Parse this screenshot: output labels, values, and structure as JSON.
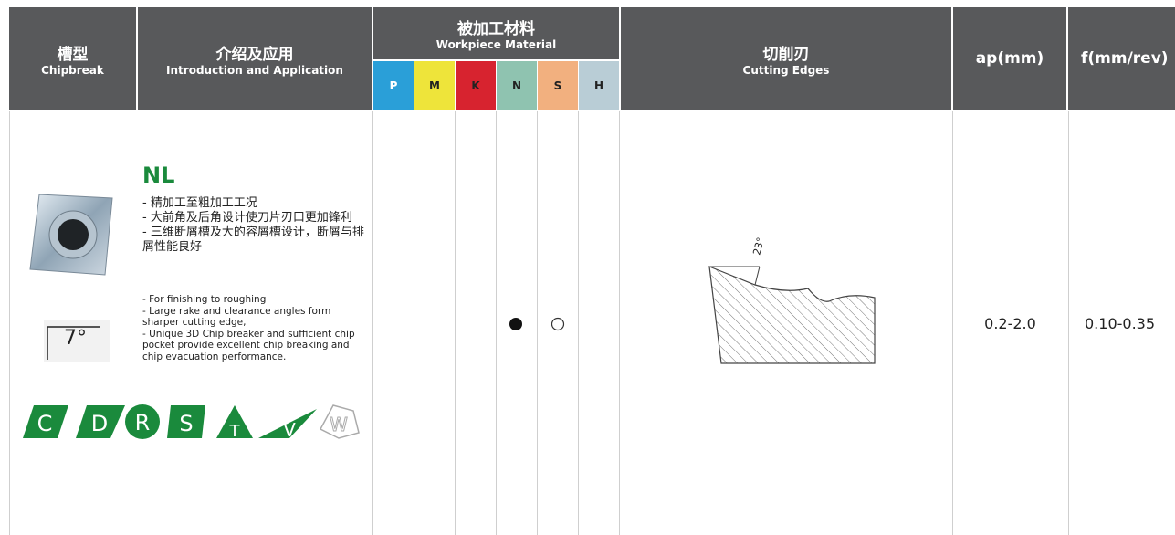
{
  "header": {
    "chipbreak": {
      "zh": "槽型",
      "en": "Chipbreak"
    },
    "intro": {
      "zh": "介绍及应用",
      "en": "Introduction and Application"
    },
    "material": {
      "zh": "被加工材料",
      "en": "Workpiece Material",
      "grades": [
        "P",
        "M",
        "K",
        "N",
        "S",
        "H"
      ]
    },
    "edges": {
      "zh": "切削刃",
      "en": "Cutting Edges"
    },
    "ap": "ap(mm)",
    "f": "f(mm/rev)"
  },
  "row": {
    "name": "NL",
    "clearance": "7°",
    "zh_points": [
      "- 精加工至粗加工工况",
      "- 大前角及后角设计使刀片刃口更加锋利",
      "- 三维断屑槽及大的容屑槽设计，断屑与排屑性能良好"
    ],
    "en_points": [
      "- For finishing to roughing",
      "- Large rake and clearance angles form sharper cutting edge,",
      "- Unique 3D Chip breaker and sufficient chip pocket provide excellent chip breaking and chip evacuation performance."
    ],
    "shapes": [
      "C",
      "D",
      "R",
      "S",
      "T",
      "V",
      "W"
    ],
    "angle": "23°",
    "ap": "0.2-2.0",
    "f": "0.10-0.35"
  }
}
